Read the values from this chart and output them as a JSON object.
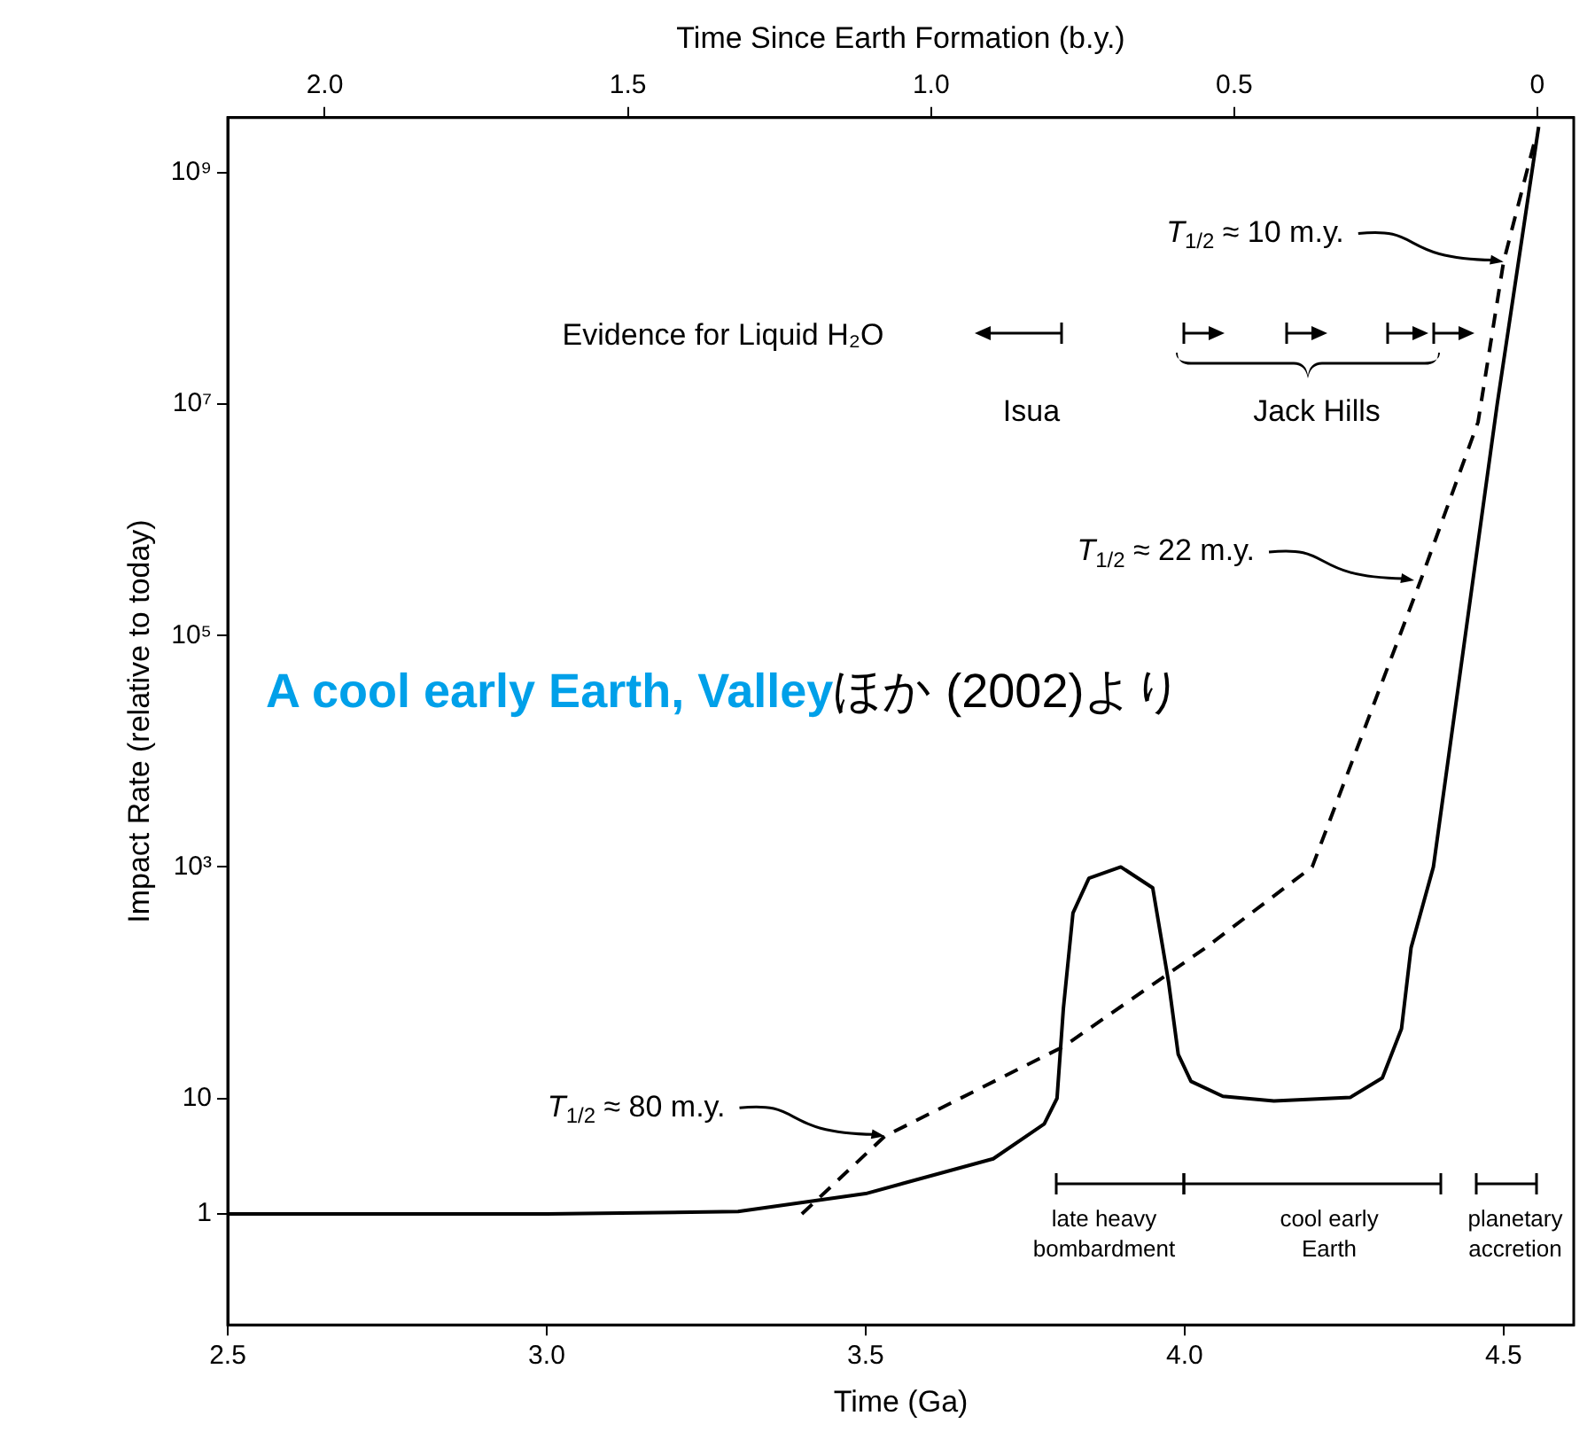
{
  "chart_data": {
    "type": "line",
    "xlabel": "Time (Ga)",
    "x2label": "Time Since Earth Formation (b.y.)",
    "ylabel": "Impact Rate (relative to today)",
    "xlim": [
      2.5,
      4.61
    ],
    "xticks": [
      2.5,
      {
        "value": 3,
        "label": "3.0"
      },
      3.5,
      {
        "value": 4,
        "label": "4.0"
      },
      4.5
    ],
    "x2lim": [
      2.16,
      -0.06
    ],
    "x2ticks": [
      {
        "value": 2,
        "label": "2.0"
      },
      1.5,
      {
        "value": 1,
        "label": "1.0"
      },
      0.5,
      0
    ],
    "log": "y",
    "ylim": [
      0.11,
      3000000000
    ],
    "yticks": [
      1,
      10,
      {
        "value": 1000,
        "label": "10³"
      },
      {
        "value": 100000,
        "label": "10⁵"
      },
      {
        "value": 10000000,
        "label": "10⁷"
      },
      {
        "value": 1000000000,
        "label": "10⁹"
      }
    ],
    "grid": false,
    "legend": false,
    "series": [
      {
        "color": "#000000",
        "line_style": "solid",
        "x": [
          2.5,
          3.0,
          3.3,
          3.5,
          3.7,
          3.78,
          3.8,
          3.81,
          3.825,
          3.85,
          3.9,
          3.95,
          3.975,
          3.99,
          4.01,
          4.06,
          4.14,
          4.26,
          4.31,
          4.34,
          4.355,
          4.39,
          4.49,
          4.555
        ],
        "values": [
          1,
          1,
          1.05,
          1.5,
          3,
          6,
          10,
          60,
          400,
          800,
          1000,
          660,
          100,
          24,
          14,
          10.4,
          9.5,
          10.2,
          15,
          40,
          200,
          1000,
          10000000,
          2500000000
        ]
      },
      {
        "color": "#000000",
        "line_style": "dashed",
        "x": [
          3.4,
          3.53,
          3.81,
          4.03,
          4.2,
          4.37,
          4.46,
          4.5,
          4.55
        ],
        "values": [
          1,
          4.7,
          28,
          195,
          1000,
          300000,
          7000000,
          170000000,
          2000000000
        ]
      }
    ],
    "annotations": [
      "Evidence for Liquid H₂O",
      "Isua",
      "Jack Hills",
      {
        "text": "T$_{1/2}$ ≈ 10 m.y.",
        "x": 4.5,
        "y": 170000000
      },
      {
        "text": "T$_{1/2}$ ≈ 22 m.y.",
        "x": 4.36,
        "y": 300000
      },
      {
        "text": "T$_{1/2}$ ≈ 80 m.y.",
        "x": 3.53,
        "y": 4.7
      },
      "late heavy bombardment",
      "cool early Earth",
      "planetary accretion",
      "A cool early Earth, Valley",
      "ほか (2002)より"
    ]
  }
}
